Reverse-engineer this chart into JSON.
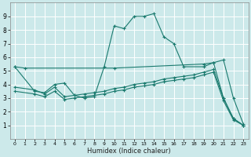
{
  "xlabel": "Humidex (Indice chaleur)",
  "bg_color": "#cce9ea",
  "grid_color": "#ffffff",
  "line_color": "#1a7a6e",
  "xlim": [
    -0.5,
    23.5
  ],
  "ylim": [
    0,
    10
  ],
  "xticks": [
    0,
    1,
    2,
    3,
    4,
    5,
    6,
    7,
    8,
    9,
    10,
    11,
    12,
    13,
    14,
    15,
    16,
    17,
    18,
    19,
    20,
    21,
    22,
    23
  ],
  "yticks": [
    1,
    2,
    3,
    4,
    5,
    6,
    7,
    8,
    9
  ],
  "line1_x": [
    0,
    1,
    10,
    19,
    20,
    21,
    22,
    23
  ],
  "line1_y": [
    5.3,
    5.2,
    5.2,
    5.5,
    5.6,
    5.8,
    3.0,
    1.1
  ],
  "line2_x": [
    0,
    2,
    3,
    4,
    5,
    6,
    7,
    8,
    9,
    10,
    11,
    12,
    13,
    14,
    15,
    16,
    17,
    19,
    20,
    21,
    22,
    23
  ],
  "line2_y": [
    5.3,
    3.5,
    3.4,
    4.0,
    4.1,
    3.2,
    3.0,
    3.1,
    5.3,
    8.3,
    8.1,
    9.0,
    9.0,
    9.2,
    7.5,
    7.0,
    5.3,
    5.3,
    5.6,
    3.0,
    1.5,
    1.0
  ],
  "line3_x": [
    0,
    2,
    3,
    4,
    5,
    6,
    7,
    8,
    9,
    10,
    11,
    12,
    13,
    14,
    15,
    16,
    17,
    18,
    19,
    20,
    21,
    22,
    23
  ],
  "line3_y": [
    3.8,
    3.6,
    3.3,
    3.8,
    3.1,
    3.2,
    3.3,
    3.4,
    3.5,
    3.7,
    3.8,
    4.0,
    4.1,
    4.2,
    4.4,
    4.5,
    4.6,
    4.7,
    4.9,
    5.1,
    3.0,
    1.5,
    1.0
  ],
  "line4_x": [
    0,
    2,
    3,
    4,
    5,
    6,
    7,
    8,
    9,
    10,
    11,
    12,
    13,
    14,
    15,
    16,
    17,
    18,
    19,
    20,
    21,
    22,
    23
  ],
  "line4_y": [
    3.5,
    3.3,
    3.1,
    3.5,
    2.9,
    3.0,
    3.1,
    3.2,
    3.3,
    3.5,
    3.6,
    3.8,
    3.9,
    4.0,
    4.2,
    4.3,
    4.4,
    4.5,
    4.7,
    4.9,
    2.8,
    1.4,
    1.0
  ]
}
